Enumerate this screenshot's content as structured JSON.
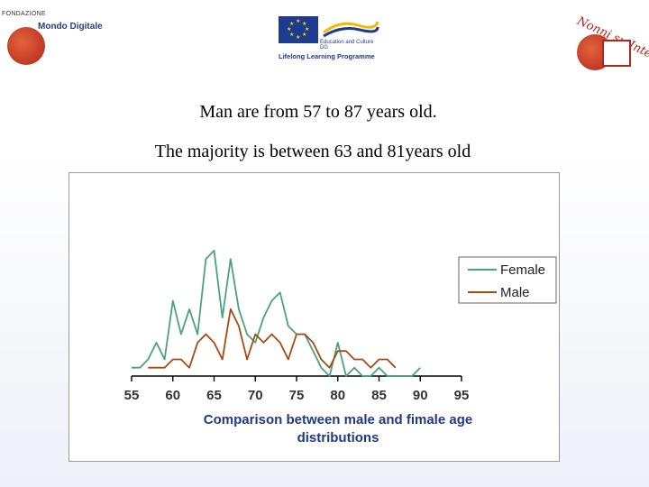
{
  "header": {
    "logo_left": {
      "org_small": "FONDAZIONE",
      "org_name": "Mondo Digitale",
      "icon": "globe-icon"
    },
    "logo_center": {
      "program": "Lifelong Learning Programme",
      "dept": "Education and Culture DG",
      "icon": "eu-flag-icon"
    },
    "logo_right": {
      "name": "Nonni su Internet",
      "icon": "computer-globe-icon"
    }
  },
  "caption": {
    "line1": "Man are from 57 to 87 years old.",
    "line2": "The majority is between 63 and 81years old"
  },
  "colors": {
    "female": "#4aa37a",
    "male": "#a94a10"
  },
  "chart_data": {
    "type": "line",
    "title": "Comparison between male and fimale age distributions",
    "xlabel": "",
    "ylabel": "",
    "xlim": [
      55,
      95
    ],
    "ylim": [
      0,
      22
    ],
    "xticks": [
      55,
      60,
      65,
      70,
      75,
      80,
      85,
      90,
      95
    ],
    "legend_position": "right",
    "grid": false,
    "series": [
      {
        "name": "Female",
        "color": "#4aa37a",
        "x": [
          55,
          56,
          57,
          58,
          59,
          60,
          61,
          62,
          63,
          64,
          65,
          66,
          67,
          68,
          69,
          70,
          71,
          72,
          73,
          74,
          75,
          76,
          77,
          78,
          79,
          80,
          81,
          82,
          83,
          84,
          85,
          86,
          87,
          88,
          89,
          90
        ],
        "y": [
          1,
          1,
          2,
          4,
          2,
          9,
          5,
          8,
          5,
          14,
          15,
          7,
          14,
          8,
          5,
          4,
          7,
          9,
          10,
          6,
          5,
          5,
          3,
          1,
          0,
          4,
          0,
          1,
          0,
          0,
          1,
          0,
          0,
          0,
          0,
          1
        ]
      },
      {
        "name": "Male",
        "color": "#a94a10",
        "x": [
          57,
          58,
          59,
          60,
          61,
          62,
          63,
          64,
          65,
          66,
          67,
          68,
          69,
          70,
          71,
          72,
          73,
          74,
          75,
          76,
          77,
          78,
          79,
          80,
          81,
          82,
          83,
          84,
          85,
          86,
          87
        ],
        "y": [
          1,
          1,
          1,
          2,
          2,
          1,
          4,
          5,
          4,
          2,
          8,
          6,
          2,
          5,
          4,
          5,
          4,
          2,
          5,
          5,
          4,
          2,
          1,
          3,
          3,
          2,
          2,
          1,
          2,
          2,
          1
        ]
      }
    ]
  }
}
